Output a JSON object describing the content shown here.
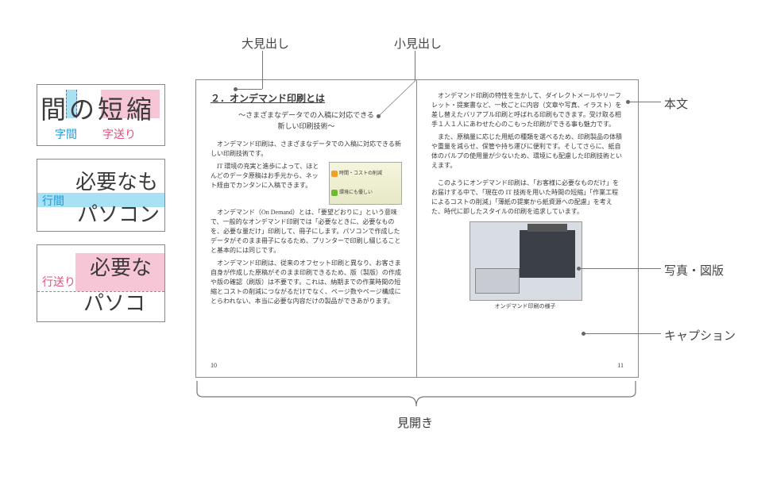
{
  "callouts": {
    "top1": "大見出し",
    "top2": "小見出し",
    "right_body": "本文",
    "right_photo": "写真・図版",
    "right_caption": "キャプション",
    "bottom": "見開き"
  },
  "left_samples": {
    "box1": {
      "text": "間の短縮",
      "label_cyan": "字間",
      "label_pink": "字送り"
    },
    "box2": {
      "line1": "必要なも",
      "line2": "パソコン",
      "label": "行間"
    },
    "box3": {
      "line1": "必要な",
      "line2": "パソコ",
      "label": "行送り"
    }
  },
  "book": {
    "heading": "２．オンデマンド印刷とは",
    "subheading": "～さまざまなデータでの入稿に対応できる\n新しい印刷技術～",
    "left_paragraphs": [
      "オンデマンド印刷は、さまざまなデータでの入稿に対応できる新しい印刷技術です。",
      "IT 環境の充実と進歩によって、ほとんどのデータ原稿はお手元から、ネット経由でカンタンに入稿できます。",
      "オンデマンド（On Demand）とは、「要望どおりに」という意味で、一般的なオンデマンド印刷では「必要なときに、必要なものを、必要な量だけ」印刷して、冊子にします。パソコンで作成したデータがそのまま冊子になるため、プリンターで印刷し綴じることと基本的には同じです。",
      "オンデマンド印刷は、従来のオフセット印刷と異なり、お客さま自身が作成した原稿がそのまま印刷できるため、版（製版）の作成や版の確認（刷版）は不要です。これは、納期までの作業時間の短縮とコストの削減につながるだけでなく、ページ数やページ構成にとらわれない、本当に必要な内容だけの製品ができあがります。"
    ],
    "right_paragraphs": [
      "オンデマンド印刷の特性を生かして、ダイレクトメールやリーフレット・提案書など、一枚ごとに内容（文章や写真、イラスト）を差し替えたバリアブル印刷と呼ばれる印刷もできます。受け取る相手１人１人にあわせた心のこもった印刷ができる事も魅力です。",
      "また、原稿量に応じた用紙の種類を選べるため、印刷製品の体積や重量を減らせ、保管や持ち運びに便利です。そしてさらに、紙自体のパルプの使用量が少ないため、環境にも配慮した印刷技術といえます。",
      "このようにオンデマンド印刷は、「お客様に必要なものだけ」をお届けする中で、「現在の IT 技術を用いた時間の短縮」「作業工程によるコストの削減」「薄紙の提案から紙資源への配慮」を考えた、時代に即したスタイルの印刷を追求しています。"
    ],
    "thumb_rows": [
      "時間・コストの削減",
      "環境にも優しい"
    ],
    "caption": "オンデマンド印刷の様子",
    "page_left": "10",
    "page_right": "11"
  },
  "colors": {
    "cyan": "#a8e0f4",
    "pink": "#f7c6d6",
    "cyan_text": "#1b9bd4",
    "pink_text": "#e2517a",
    "border": "#888888",
    "thumb_orange": "#f0a028",
    "thumb_green": "#6fb92e"
  }
}
